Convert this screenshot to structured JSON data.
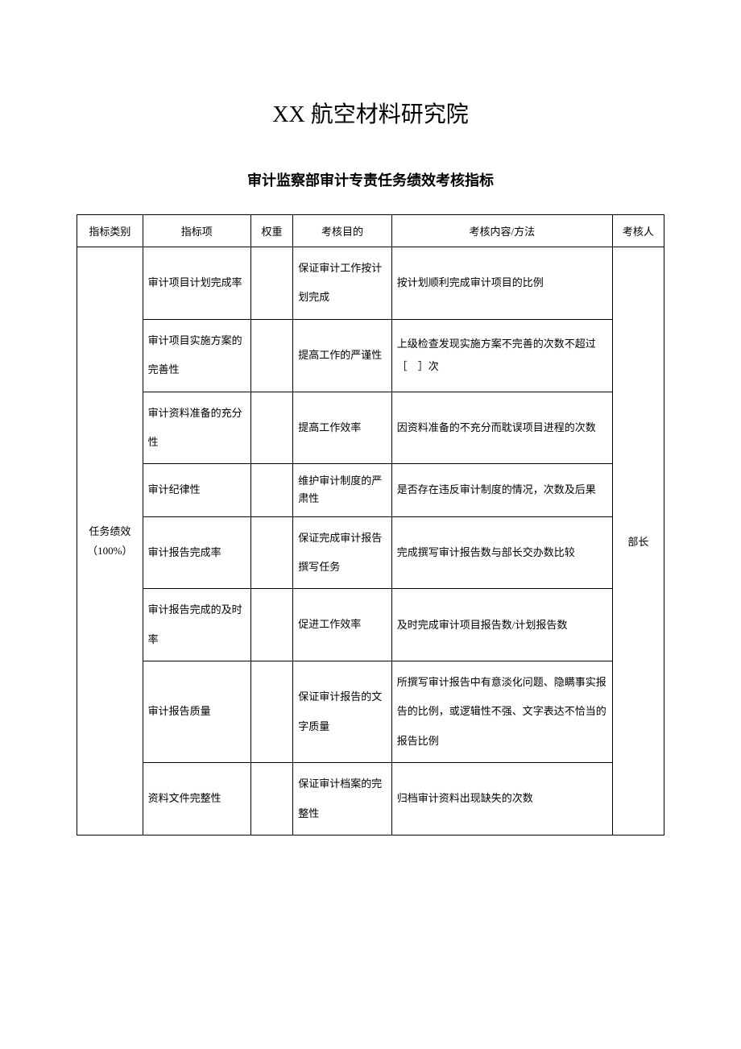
{
  "document": {
    "main_title": "XX 航空材料研究院",
    "sub_title": "审计监察部审计专责任务绩效考核指标"
  },
  "table": {
    "headers": {
      "category": "指标类别",
      "item": "指标项",
      "weight": "权重",
      "purpose": "考核目的",
      "content": "考核内容/方法",
      "assessor": "考核人"
    },
    "category_label": "任务绩效（100%）",
    "assessor_label": "部长",
    "rows": [
      {
        "item": "审计项目计划完成率",
        "weight": "",
        "purpose": "保证审计工作按计划完成",
        "content": "按计划顺利完成审计项目的比例"
      },
      {
        "item": "审计项目实施方案的完善性",
        "weight": "",
        "purpose": "提高工作的严谨性",
        "content": "上级检查发现实施方案不完善的次数不超过［　］次"
      },
      {
        "item": "审计资料准备的充分性",
        "weight": "",
        "purpose": "提高工作效率",
        "content": "因资料准备的不充分而耽误项目进程的次数"
      },
      {
        "item": "审计纪律性",
        "weight": "",
        "purpose": "维护审计制度的严肃性",
        "content": "是否存在违反审计制度的情况，次数及后果"
      },
      {
        "item": "审计报告完成率",
        "weight": "",
        "purpose": "保证完成审计报告撰写任务",
        "content": "完成撰写审计报告数与部长交办数比较"
      },
      {
        "item": "审计报告完成的及时率",
        "weight": "",
        "purpose": "促进工作效率",
        "content": "及时完成审计项目报告数/计划报告数"
      },
      {
        "item": "审计报告质量",
        "weight": "",
        "purpose": "保证审计报告的文字质量",
        "content": "所撰写审计报告中有意淡化问题、隐瞒事实报告的比例，或逻辑性不强、文字表达不恰当的报告比例"
      },
      {
        "item": "资料文件完整性",
        "weight": "",
        "purpose": "保证审计档案的完整性",
        "content": "归档审计资料出现缺失的次数"
      }
    ]
  },
  "styles": {
    "background_color": "#ffffff",
    "border_color": "#000000",
    "text_color": "#000000",
    "main_title_fontsize": 28,
    "sub_title_fontsize": 18,
    "table_fontsize": 13
  }
}
